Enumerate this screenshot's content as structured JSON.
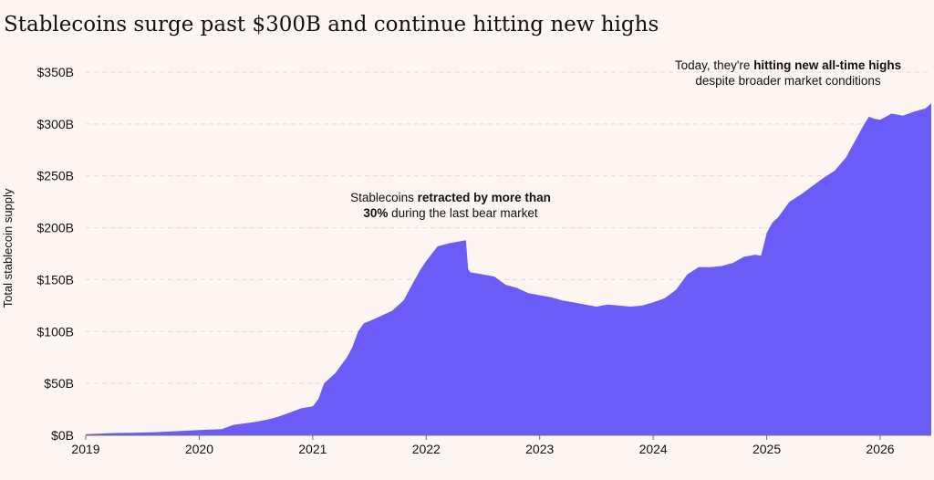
{
  "title": "Stablecoins surge past $300B and continue hitting new highs",
  "colors": {
    "background": "#fdf5f2",
    "area": "#6c5cf7",
    "grid": "#e2d9d6",
    "text": "#111111",
    "baseline": "#6f6f6f"
  },
  "chart_data": {
    "type": "area",
    "title": "Stablecoins surge past $300B and continue hitting new highs",
    "ylabel": "Total stablecoin supply",
    "xlabel": "",
    "xlim": [
      2019.0,
      2026.45
    ],
    "ylim": [
      0,
      350
    ],
    "grid": true,
    "x_ticks": [
      {
        "value": 2019,
        "label": "2019"
      },
      {
        "value": 2020,
        "label": "2020"
      },
      {
        "value": 2021,
        "label": "2021"
      },
      {
        "value": 2022,
        "label": "2022"
      },
      {
        "value": 2023,
        "label": "2023"
      },
      {
        "value": 2024,
        "label": "2024"
      },
      {
        "value": 2025,
        "label": "2025"
      },
      {
        "value": 2026,
        "label": "2026"
      }
    ],
    "y_ticks": [
      {
        "value": 0,
        "label": "$0B"
      },
      {
        "value": 50,
        "label": "$50B"
      },
      {
        "value": 100,
        "label": "$100B"
      },
      {
        "value": 150,
        "label": "$150B"
      },
      {
        "value": 200,
        "label": "$200B"
      },
      {
        "value": 250,
        "label": "$250B"
      },
      {
        "value": 300,
        "label": "$300B"
      },
      {
        "value": 350,
        "label": "$350B"
      }
    ],
    "series": [
      {
        "x": [
          2019.0,
          2019.2,
          2019.4,
          2019.6,
          2019.8,
          2020.0,
          2020.1,
          2020.2,
          2020.25,
          2020.3,
          2020.5,
          2020.6,
          2020.7,
          2020.8,
          2020.9,
          2021.0,
          2021.05,
          2021.1,
          2021.2,
          2021.3,
          2021.35,
          2021.4,
          2021.45,
          2021.5,
          2021.6,
          2021.7,
          2021.8,
          2021.9,
          2021.95,
          2022.0,
          2022.1,
          2022.2,
          2022.3,
          2022.35,
          2022.37,
          2022.39,
          2022.45,
          2022.5,
          2022.6,
          2022.7,
          2022.8,
          2022.9,
          2023.0,
          2023.1,
          2023.2,
          2023.3,
          2023.4,
          2023.5,
          2023.6,
          2023.7,
          2023.8,
          2023.9,
          2024.0,
          2024.1,
          2024.2,
          2024.3,
          2024.4,
          2024.5,
          2024.6,
          2024.7,
          2024.8,
          2024.85,
          2024.9,
          2024.95,
          2025.0,
          2025.05,
          2025.1,
          2025.2,
          2025.3,
          2025.4,
          2025.5,
          2025.6,
          2025.7,
          2025.8,
          2025.85,
          2025.9,
          2025.95,
          2026.0,
          2026.05,
          2026.1,
          2026.2,
          2026.3,
          2026.4,
          2026.45
        ],
        "y": [
          1,
          2,
          2.5,
          3,
          4,
          5,
          5.5,
          6,
          8,
          10,
          13,
          15,
          18,
          22,
          26,
          28,
          35,
          50,
          60,
          75,
          85,
          100,
          108,
          110,
          115,
          120,
          130,
          150,
          160,
          168,
          182,
          185,
          187,
          188,
          160,
          157,
          156,
          155,
          153,
          145,
          142,
          137,
          135,
          133,
          130,
          128,
          126,
          124,
          126,
          125,
          124,
          125,
          128,
          132,
          140,
          155,
          162,
          162,
          163,
          166,
          172,
          173,
          174,
          173,
          195,
          205,
          210,
          225,
          232,
          240,
          248,
          255,
          268,
          288,
          298,
          307,
          305,
          304,
          307,
          310,
          308,
          312,
          315,
          320
        ]
      }
    ],
    "annotations": [
      {
        "id": "retracted",
        "lines": [
          [
            {
              "text": "Stablecoins ",
              "bold": false
            },
            {
              "text": "retracted by more than",
              "bold": true
            }
          ],
          [
            {
              "text": "30%",
              "bold": true
            },
            {
              "text": " during the last bear market",
              "bold": false
            }
          ]
        ]
      },
      {
        "id": "all-time-highs",
        "lines": [
          [
            {
              "text": "Today,  they're ",
              "bold": false
            },
            {
              "text": "hitting new all-time highs",
              "bold": true
            }
          ],
          [
            {
              "text": "despite broader market conditions",
              "bold": false
            }
          ]
        ]
      }
    ]
  }
}
